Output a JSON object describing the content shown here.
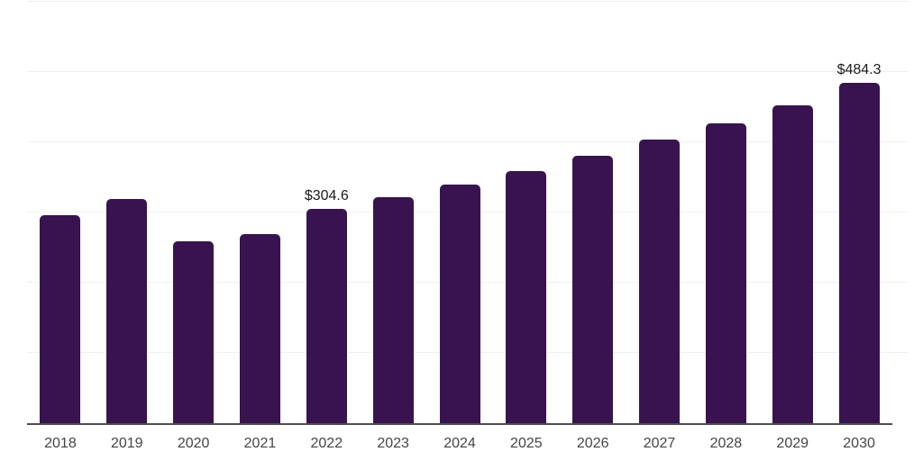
{
  "chart_data": {
    "type": "bar",
    "title": "",
    "xlabel": "",
    "ylabel": "",
    "categories": [
      "2018",
      "2019",
      "2020",
      "2021",
      "2022",
      "2023",
      "2024",
      "2025",
      "2026",
      "2027",
      "2028",
      "2029",
      "2030"
    ],
    "values": [
      296,
      319,
      259,
      269,
      304.6,
      322,
      340,
      359,
      381,
      404,
      427,
      453,
      484.3
    ],
    "data_labels": [
      {
        "category": "2022",
        "text": "$304.6"
      },
      {
        "category": "2030",
        "text": "$484.3"
      }
    ],
    "ylim": [
      0,
      600
    ],
    "gridline_step": 100,
    "grid": "horizontal-only",
    "y_axis_labels_visible": false,
    "legend": "none",
    "colors": {
      "bar": "#39134F",
      "gridline": "#f0f0f0",
      "axis": "#4d4d4d",
      "tick_label": "#454545",
      "data_label": "#1a1a1a",
      "background": "#ffffff"
    }
  }
}
